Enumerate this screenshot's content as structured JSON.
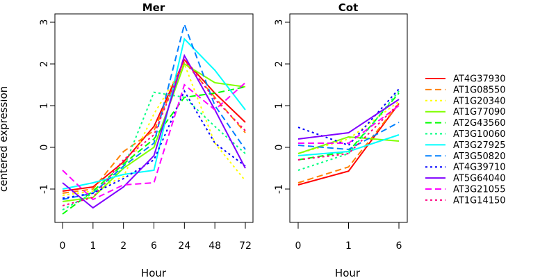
{
  "chart_data": {
    "type": "line",
    "ylabel": "centered expression",
    "xlabel": "Hour",
    "legend_placement": "right",
    "series_meta": [
      {
        "name": "AT4G37930",
        "color": "#ff0000",
        "dash": "solid"
      },
      {
        "name": "AT1G08550",
        "color": "#ff8000",
        "dash": "dashed"
      },
      {
        "name": "AT1G20340",
        "color": "#ffff00",
        "dash": "dotted"
      },
      {
        "name": "AT1G77090",
        "color": "#80ff00",
        "dash": "solid"
      },
      {
        "name": "AT2G43560",
        "color": "#00ff00",
        "dash": "dashed"
      },
      {
        "name": "AT3G10060",
        "color": "#00ff80",
        "dash": "dotted"
      },
      {
        "name": "AT3G27925",
        "color": "#00ffff",
        "dash": "solid"
      },
      {
        "name": "AT3G50820",
        "color": "#0080ff",
        "dash": "dashed"
      },
      {
        "name": "AT4G39710",
        "color": "#0000ff",
        "dash": "dotted"
      },
      {
        "name": "AT5G64040",
        "color": "#8000ff",
        "dash": "solid"
      },
      {
        "name": "AT3G21055",
        "color": "#ff00ff",
        "dash": "dashed"
      },
      {
        "name": "AT1G14150",
        "color": "#ff0080",
        "dash": "dotted"
      }
    ],
    "panels": [
      {
        "title": "Mer",
        "x_labels": [
          "0",
          "1",
          "2",
          "6",
          "24",
          "48",
          "72"
        ],
        "yticks": [
          "-1",
          "0",
          "1",
          "2",
          "3"
        ],
        "ylim": [
          -1.8,
          3.2
        ],
        "values": [
          [
            -1.05,
            -0.95,
            -0.35,
            0.5,
            2.1,
            1.3,
            0.6
          ],
          [
            -1.1,
            -1.0,
            -0.1,
            0.4,
            2.05,
            1.2,
            0.35
          ],
          [
            -1.15,
            -1.05,
            -0.7,
            0.8,
            2.0,
            0.1,
            -0.8
          ],
          [
            -1.3,
            -1.2,
            -0.5,
            0.0,
            2.0,
            1.55,
            1.45
          ],
          [
            -1.6,
            -1.05,
            -0.4,
            0.2,
            1.2,
            1.3,
            1.45
          ],
          [
            -1.5,
            -1.1,
            -0.5,
            1.32,
            1.2,
            0.5,
            -0.15
          ],
          [
            -1.0,
            -0.85,
            -0.65,
            -0.55,
            2.6,
            1.85,
            0.9
          ],
          [
            -1.25,
            -1.1,
            -0.45,
            0.1,
            2.95,
            1.0,
            -0.05
          ],
          [
            -1.22,
            -1.1,
            -0.75,
            -0.3,
            1.35,
            0.1,
            -0.45
          ],
          [
            -0.85,
            -1.45,
            -0.95,
            -0.2,
            2.2,
            0.9,
            -0.5
          ],
          [
            -0.55,
            -1.25,
            -0.9,
            -0.85,
            1.5,
            0.9,
            1.55
          ],
          [
            -1.4,
            -1.2,
            -0.3,
            0.3,
            2.1,
            1.15,
            0.4
          ]
        ]
      },
      {
        "title": "Cot",
        "x_labels": [
          "0",
          "1",
          "6"
        ],
        "yticks": [
          "-1",
          "0",
          "1",
          "2",
          "3"
        ],
        "ylim": [
          -1.8,
          3.2
        ],
        "values": [
          [
            -0.9,
            -0.57,
            1.05
          ],
          [
            -0.85,
            -0.47,
            1.05
          ],
          [
            -0.15,
            0.2,
            1.1
          ],
          [
            -0.15,
            0.25,
            0.15
          ],
          [
            -0.3,
            -0.1,
            1.3
          ],
          [
            -0.55,
            -0.15,
            1.35
          ],
          [
            -0.2,
            -0.1,
            0.3
          ],
          [
            0.05,
            -0.05,
            0.6
          ],
          [
            0.48,
            0.05,
            1.4
          ],
          [
            0.2,
            0.35,
            1.15
          ],
          [
            0.1,
            0.1,
            1.0
          ],
          [
            -0.3,
            -0.15,
            1.05
          ]
        ]
      }
    ]
  }
}
